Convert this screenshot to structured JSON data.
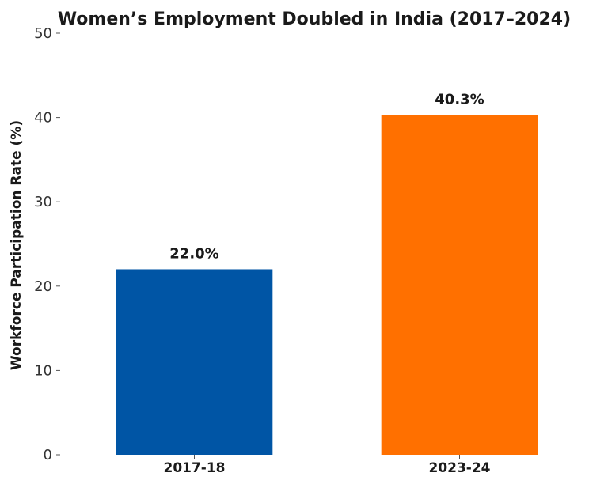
{
  "chart_data": {
    "type": "bar",
    "title": "Women’s Employment Doubled in India (2017–2024)",
    "xlabel": "",
    "ylabel": "Workforce Participation Rate (%)",
    "categories": [
      "2017-18",
      "2023-24"
    ],
    "values": [
      22.0,
      40.3
    ],
    "data_labels": [
      "22.0%",
      "40.3%"
    ],
    "colors": [
      "#0055a5",
      "#ff7000"
    ],
    "ylim": [
      0,
      50
    ],
    "yticks": [
      0,
      10,
      20,
      30,
      40,
      50
    ],
    "grid": false,
    "legend": "none"
  }
}
